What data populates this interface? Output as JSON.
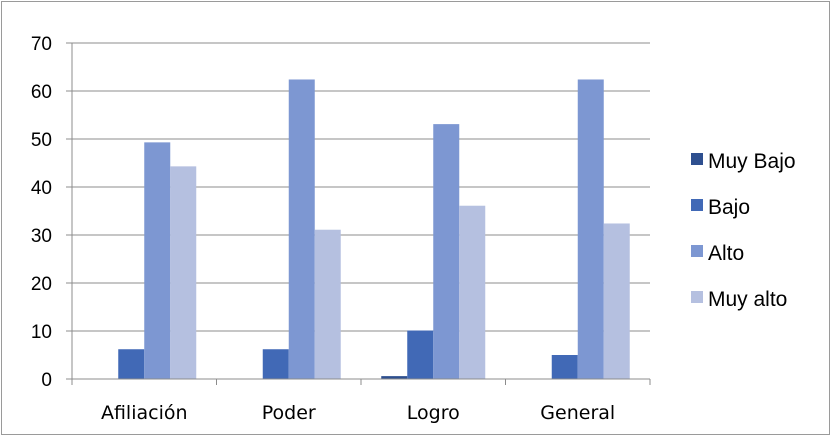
{
  "chart_data": {
    "type": "bar",
    "title": "",
    "xlabel": "",
    "ylabel": "",
    "categories": [
      "Afiliación",
      "Poder",
      "Logro",
      "General"
    ],
    "series": [
      {
        "name": "Muy Bajo",
        "values": [
          0,
          0,
          0.6,
          0
        ],
        "color": "#2e4f8f"
      },
      {
        "name": "Bajo",
        "values": [
          6.2,
          6.2,
          10.1,
          5.0
        ],
        "color": "#4169b6"
      },
      {
        "name": "Alto",
        "values": [
          49.3,
          62.4,
          53.1,
          62.4
        ],
        "color": "#7d97d2"
      },
      {
        "name": "Muy alto",
        "values": [
          44.3,
          31.1,
          36.1,
          32.4
        ],
        "color": "#b5c0e0"
      }
    ],
    "ylim": [
      0,
      70
    ],
    "yticks": [
      "0",
      "10",
      "20",
      "30",
      "40",
      "50",
      "60",
      "70"
    ],
    "grid": true,
    "legend_position": "right"
  }
}
